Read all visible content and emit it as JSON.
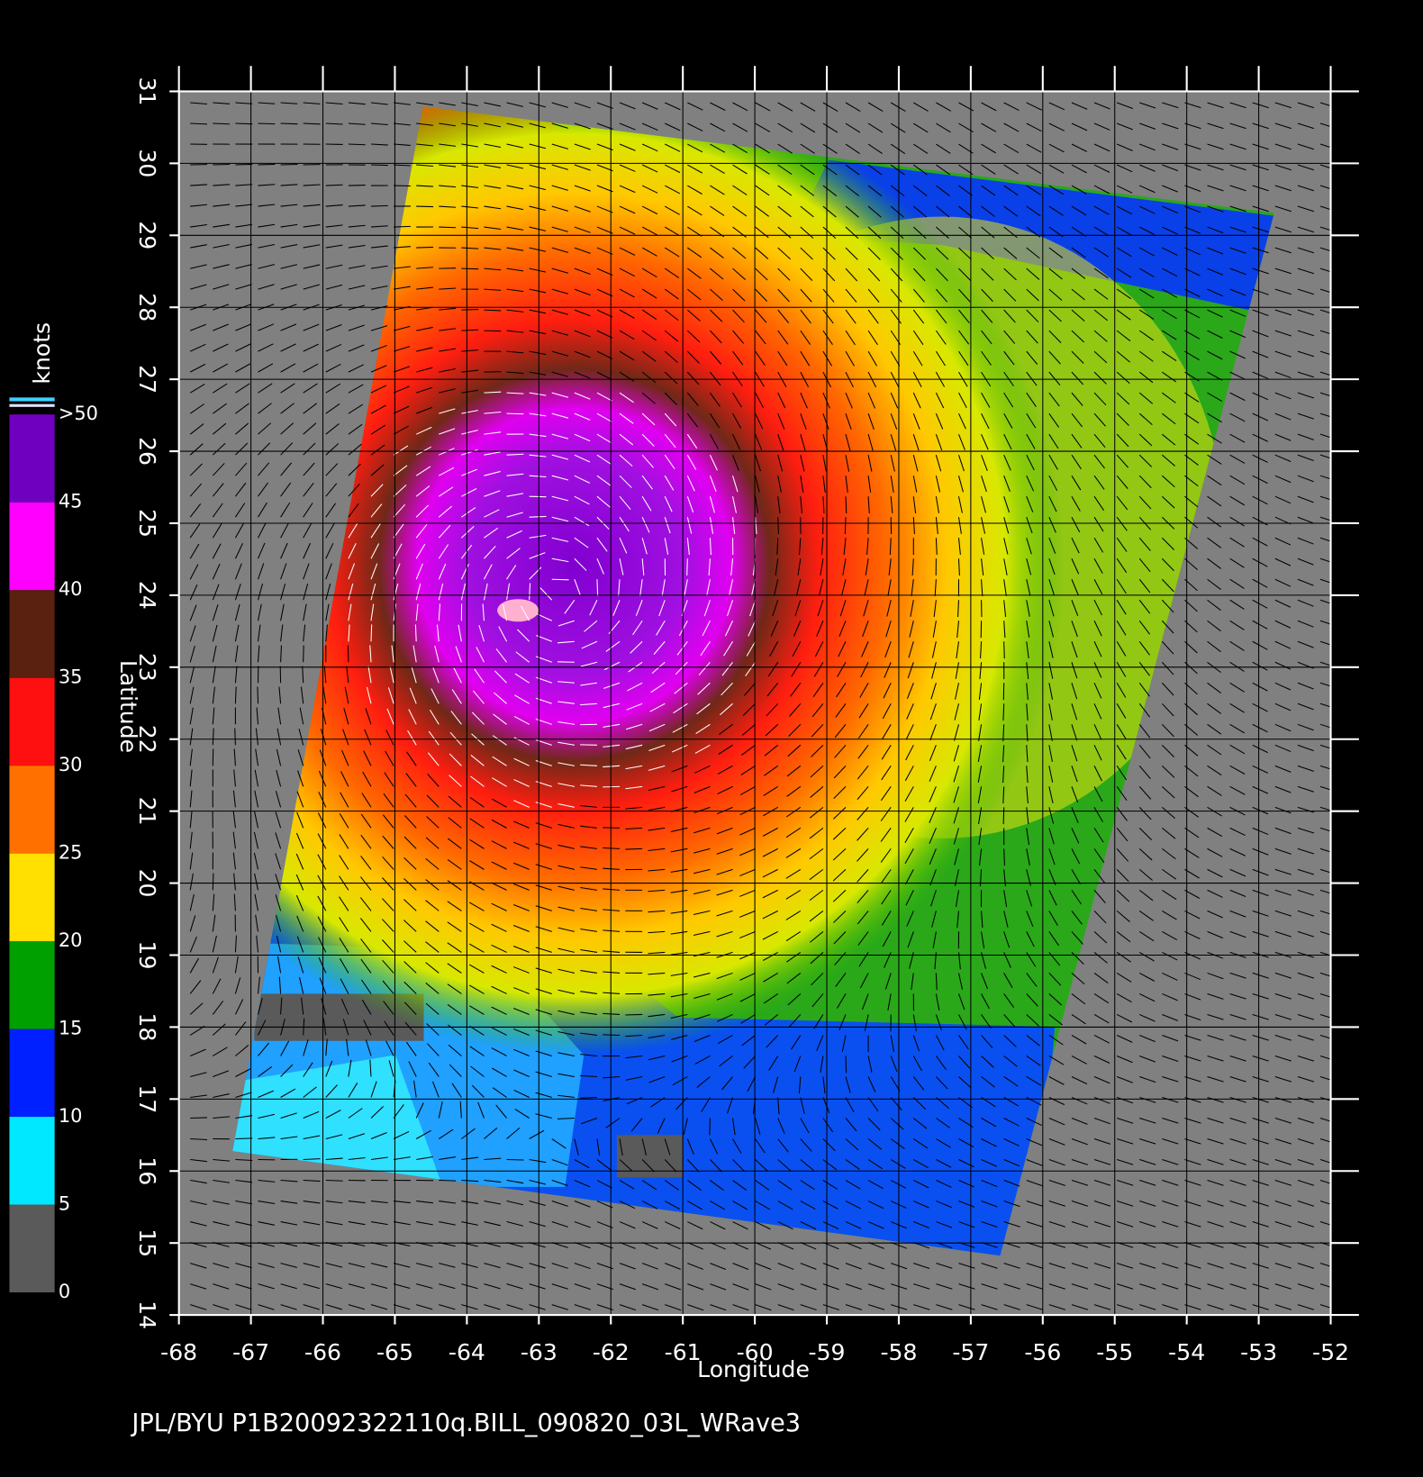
{
  "title": "JPL/BYU  P1B20092322110q.BILL_090820_03L_WRave3",
  "xaxis": {
    "label": "Longitude",
    "lim": [
      -68,
      -52
    ],
    "ticks": [
      -68,
      -67,
      -66,
      -65,
      -64,
      -63,
      -62,
      -61,
      -60,
      -59,
      -58,
      -57,
      -56,
      -55,
      -54,
      -53,
      -52
    ]
  },
  "yaxis": {
    "label": "Latitude",
    "lim": [
      14,
      31
    ],
    "ticks": [
      14,
      15,
      16,
      17,
      18,
      19,
      20,
      21,
      22,
      23,
      24,
      25,
      26,
      27,
      28,
      29,
      30,
      31
    ]
  },
  "colorbar": {
    "label": "knots",
    "lim": [
      0,
      50
    ],
    "ticks": [
      0,
      5,
      10,
      15,
      20,
      25,
      30,
      35,
      40,
      45,
      {
        "value": 50,
        "label": ">50"
      }
    ],
    "colors": [
      "#5a5a5a",
      "#00e8ff",
      "#0020ff",
      "#00a000",
      "#ffe000",
      "#ff7000",
      "#ff1010",
      "#5a2010",
      "#ff00ff",
      "#7000c0"
    ]
  }
}
